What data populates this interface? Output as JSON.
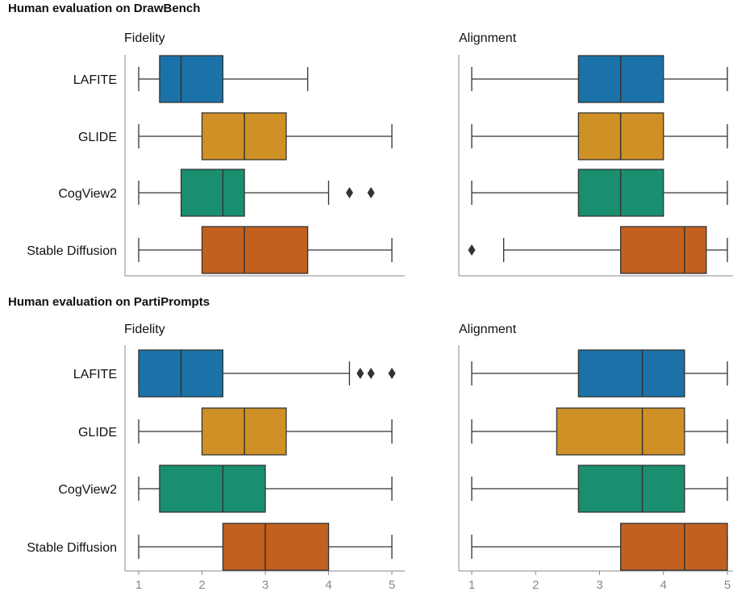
{
  "section_titles": [
    "Human evaluation on DrawBench",
    "Human evaluation on PartiPrompts"
  ],
  "colors": {
    "LAFITE": "#1a72a8",
    "GLIDE": "#cf9125",
    "CogView2": "#1a8f6f",
    "Stable Diffusion": "#c2611f",
    "outline": "#333333",
    "axis": "#8a8a8a"
  },
  "chart_data": [
    {
      "type": "boxplot",
      "title": "Fidelity",
      "section": "Human evaluation on DrawBench",
      "categories": [
        "LAFITE",
        "GLIDE",
        "CogView2",
        "Stable Diffusion"
      ],
      "xlim": [
        1,
        5
      ],
      "boxes": [
        {
          "name": "LAFITE",
          "whislo": 1,
          "q1": 1.33,
          "med": 1.67,
          "q3": 2.33,
          "whishi": 3.67,
          "fliers": []
        },
        {
          "name": "GLIDE",
          "whislo": 1,
          "q1": 2.0,
          "med": 2.67,
          "q3": 3.33,
          "whishi": 5,
          "fliers": []
        },
        {
          "name": "CogView2",
          "whislo": 1,
          "q1": 1.67,
          "med": 2.33,
          "q3": 2.67,
          "whishi": 4.0,
          "fliers": [
            4.33,
            4.67
          ]
        },
        {
          "name": "Stable Diffusion",
          "whislo": 1,
          "q1": 2.0,
          "med": 2.67,
          "q3": 3.67,
          "whishi": 5,
          "fliers": []
        }
      ]
    },
    {
      "type": "boxplot",
      "title": "Alignment",
      "section": "Human evaluation on DrawBench",
      "categories": [
        "LAFITE",
        "GLIDE",
        "CogView2",
        "Stable Diffusion"
      ],
      "xlim": [
        1,
        5
      ],
      "boxes": [
        {
          "name": "LAFITE",
          "whislo": 1,
          "q1": 2.67,
          "med": 3.33,
          "q3": 4.0,
          "whishi": 5,
          "fliers": []
        },
        {
          "name": "GLIDE",
          "whislo": 1,
          "q1": 2.67,
          "med": 3.33,
          "q3": 4.0,
          "whishi": 5,
          "fliers": []
        },
        {
          "name": "CogView2",
          "whislo": 1,
          "q1": 2.67,
          "med": 3.33,
          "q3": 4.0,
          "whishi": 5,
          "fliers": []
        },
        {
          "name": "Stable Diffusion",
          "whislo": 1.5,
          "q1": 3.33,
          "med": 4.33,
          "q3": 4.67,
          "whishi": 5,
          "fliers": [
            1.0
          ]
        }
      ]
    },
    {
      "type": "boxplot",
      "title": "Fidelity",
      "section": "Human evaluation on PartiPrompts",
      "categories": [
        "LAFITE",
        "GLIDE",
        "CogView2",
        "Stable Diffusion"
      ],
      "xlim": [
        1,
        5
      ],
      "xticks": [
        1,
        2,
        3,
        4,
        5
      ],
      "boxes": [
        {
          "name": "LAFITE",
          "whislo": 1,
          "q1": 1.0,
          "med": 1.67,
          "q3": 2.33,
          "whishi": 4.33,
          "fliers": [
            4.5,
            4.67,
            5.0
          ]
        },
        {
          "name": "GLIDE",
          "whislo": 1,
          "q1": 2.0,
          "med": 2.67,
          "q3": 3.33,
          "whishi": 5,
          "fliers": []
        },
        {
          "name": "CogView2",
          "whislo": 1,
          "q1": 1.33,
          "med": 2.33,
          "q3": 3.0,
          "whishi": 5,
          "fliers": []
        },
        {
          "name": "Stable Diffusion",
          "whislo": 1,
          "q1": 2.33,
          "med": 3.0,
          "q3": 4.0,
          "whishi": 5,
          "fliers": []
        }
      ]
    },
    {
      "type": "boxplot",
      "title": "Alignment",
      "section": "Human evaluation on PartiPrompts",
      "categories": [
        "LAFITE",
        "GLIDE",
        "CogView2",
        "Stable Diffusion"
      ],
      "xlim": [
        1,
        5
      ],
      "xticks": [
        1,
        2,
        3,
        4,
        5
      ],
      "boxes": [
        {
          "name": "LAFITE",
          "whislo": 1,
          "q1": 2.67,
          "med": 3.67,
          "q3": 4.33,
          "whishi": 5,
          "fliers": []
        },
        {
          "name": "GLIDE",
          "whislo": 1,
          "q1": 2.33,
          "med": 3.67,
          "q3": 4.33,
          "whishi": 5,
          "fliers": []
        },
        {
          "name": "CogView2",
          "whislo": 1,
          "q1": 2.67,
          "med": 3.67,
          "q3": 4.33,
          "whishi": 5,
          "fliers": []
        },
        {
          "name": "Stable Diffusion",
          "whislo": 1,
          "q1": 3.33,
          "med": 4.33,
          "q3": 5.0,
          "whishi": 5,
          "fliers": []
        }
      ]
    }
  ]
}
